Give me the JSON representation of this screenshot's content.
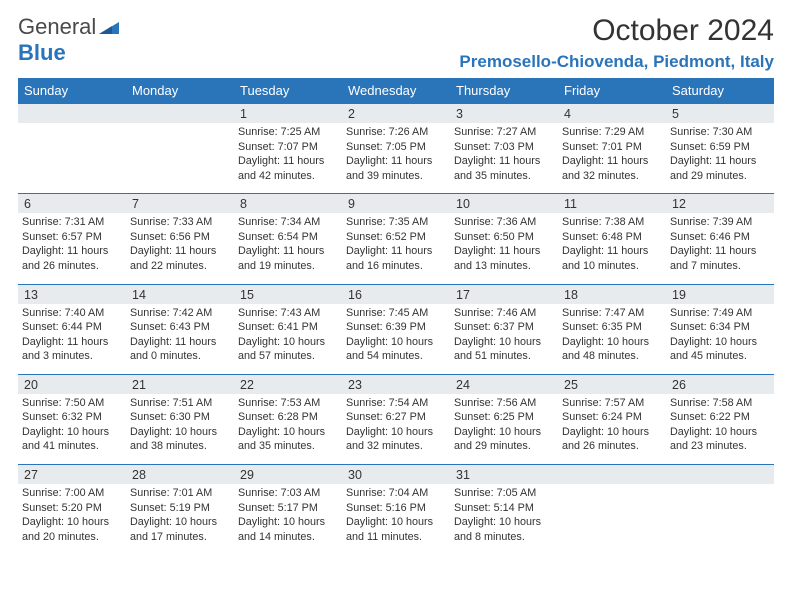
{
  "logo": {
    "text1": "General",
    "text2": "Blue",
    "color1": "#4a4a4a",
    "color2": "#2a74ba"
  },
  "title": "October 2024",
  "location": "Premosello-Chiovenda, Piedmont, Italy",
  "colors": {
    "header_bg": "#2a74ba",
    "header_fg": "#ffffff",
    "daynum_bg": "#e8ebed",
    "border": "#2a74ba",
    "text": "#333333",
    "background": "#ffffff"
  },
  "fonts": {
    "title_size": 30,
    "location_size": 17,
    "dow_size": 13,
    "daynum_size": 12.5,
    "cell_size": 10.8
  },
  "dow": [
    "Sunday",
    "Monday",
    "Tuesday",
    "Wednesday",
    "Thursday",
    "Friday",
    "Saturday"
  ],
  "weeks": [
    {
      "nums": [
        "",
        "",
        "1",
        "2",
        "3",
        "4",
        "5"
      ],
      "cells": [
        null,
        null,
        {
          "sunrise": "Sunrise: 7:25 AM",
          "sunset": "Sunset: 7:07 PM",
          "day1": "Daylight: 11 hours",
          "day2": "and 42 minutes."
        },
        {
          "sunrise": "Sunrise: 7:26 AM",
          "sunset": "Sunset: 7:05 PM",
          "day1": "Daylight: 11 hours",
          "day2": "and 39 minutes."
        },
        {
          "sunrise": "Sunrise: 7:27 AM",
          "sunset": "Sunset: 7:03 PM",
          "day1": "Daylight: 11 hours",
          "day2": "and 35 minutes."
        },
        {
          "sunrise": "Sunrise: 7:29 AM",
          "sunset": "Sunset: 7:01 PM",
          "day1": "Daylight: 11 hours",
          "day2": "and 32 minutes."
        },
        {
          "sunrise": "Sunrise: 7:30 AM",
          "sunset": "Sunset: 6:59 PM",
          "day1": "Daylight: 11 hours",
          "day2": "and 29 minutes."
        }
      ]
    },
    {
      "nums": [
        "6",
        "7",
        "8",
        "9",
        "10",
        "11",
        "12"
      ],
      "cells": [
        {
          "sunrise": "Sunrise: 7:31 AM",
          "sunset": "Sunset: 6:57 PM",
          "day1": "Daylight: 11 hours",
          "day2": "and 26 minutes."
        },
        {
          "sunrise": "Sunrise: 7:33 AM",
          "sunset": "Sunset: 6:56 PM",
          "day1": "Daylight: 11 hours",
          "day2": "and 22 minutes."
        },
        {
          "sunrise": "Sunrise: 7:34 AM",
          "sunset": "Sunset: 6:54 PM",
          "day1": "Daylight: 11 hours",
          "day2": "and 19 minutes."
        },
        {
          "sunrise": "Sunrise: 7:35 AM",
          "sunset": "Sunset: 6:52 PM",
          "day1": "Daylight: 11 hours",
          "day2": "and 16 minutes."
        },
        {
          "sunrise": "Sunrise: 7:36 AM",
          "sunset": "Sunset: 6:50 PM",
          "day1": "Daylight: 11 hours",
          "day2": "and 13 minutes."
        },
        {
          "sunrise": "Sunrise: 7:38 AM",
          "sunset": "Sunset: 6:48 PM",
          "day1": "Daylight: 11 hours",
          "day2": "and 10 minutes."
        },
        {
          "sunrise": "Sunrise: 7:39 AM",
          "sunset": "Sunset: 6:46 PM",
          "day1": "Daylight: 11 hours",
          "day2": "and 7 minutes."
        }
      ]
    },
    {
      "nums": [
        "13",
        "14",
        "15",
        "16",
        "17",
        "18",
        "19"
      ],
      "cells": [
        {
          "sunrise": "Sunrise: 7:40 AM",
          "sunset": "Sunset: 6:44 PM",
          "day1": "Daylight: 11 hours",
          "day2": "and 3 minutes."
        },
        {
          "sunrise": "Sunrise: 7:42 AM",
          "sunset": "Sunset: 6:43 PM",
          "day1": "Daylight: 11 hours",
          "day2": "and 0 minutes."
        },
        {
          "sunrise": "Sunrise: 7:43 AM",
          "sunset": "Sunset: 6:41 PM",
          "day1": "Daylight: 10 hours",
          "day2": "and 57 minutes."
        },
        {
          "sunrise": "Sunrise: 7:45 AM",
          "sunset": "Sunset: 6:39 PM",
          "day1": "Daylight: 10 hours",
          "day2": "and 54 minutes."
        },
        {
          "sunrise": "Sunrise: 7:46 AM",
          "sunset": "Sunset: 6:37 PM",
          "day1": "Daylight: 10 hours",
          "day2": "and 51 minutes."
        },
        {
          "sunrise": "Sunrise: 7:47 AM",
          "sunset": "Sunset: 6:35 PM",
          "day1": "Daylight: 10 hours",
          "day2": "and 48 minutes."
        },
        {
          "sunrise": "Sunrise: 7:49 AM",
          "sunset": "Sunset: 6:34 PM",
          "day1": "Daylight: 10 hours",
          "day2": "and 45 minutes."
        }
      ]
    },
    {
      "nums": [
        "20",
        "21",
        "22",
        "23",
        "24",
        "25",
        "26"
      ],
      "cells": [
        {
          "sunrise": "Sunrise: 7:50 AM",
          "sunset": "Sunset: 6:32 PM",
          "day1": "Daylight: 10 hours",
          "day2": "and 41 minutes."
        },
        {
          "sunrise": "Sunrise: 7:51 AM",
          "sunset": "Sunset: 6:30 PM",
          "day1": "Daylight: 10 hours",
          "day2": "and 38 minutes."
        },
        {
          "sunrise": "Sunrise: 7:53 AM",
          "sunset": "Sunset: 6:28 PM",
          "day1": "Daylight: 10 hours",
          "day2": "and 35 minutes."
        },
        {
          "sunrise": "Sunrise: 7:54 AM",
          "sunset": "Sunset: 6:27 PM",
          "day1": "Daylight: 10 hours",
          "day2": "and 32 minutes."
        },
        {
          "sunrise": "Sunrise: 7:56 AM",
          "sunset": "Sunset: 6:25 PM",
          "day1": "Daylight: 10 hours",
          "day2": "and 29 minutes."
        },
        {
          "sunrise": "Sunrise: 7:57 AM",
          "sunset": "Sunset: 6:24 PM",
          "day1": "Daylight: 10 hours",
          "day2": "and 26 minutes."
        },
        {
          "sunrise": "Sunrise: 7:58 AM",
          "sunset": "Sunset: 6:22 PM",
          "day1": "Daylight: 10 hours",
          "day2": "and 23 minutes."
        }
      ]
    },
    {
      "nums": [
        "27",
        "28",
        "29",
        "30",
        "31",
        "",
        ""
      ],
      "cells": [
        {
          "sunrise": "Sunrise: 7:00 AM",
          "sunset": "Sunset: 5:20 PM",
          "day1": "Daylight: 10 hours",
          "day2": "and 20 minutes."
        },
        {
          "sunrise": "Sunrise: 7:01 AM",
          "sunset": "Sunset: 5:19 PM",
          "day1": "Daylight: 10 hours",
          "day2": "and 17 minutes."
        },
        {
          "sunrise": "Sunrise: 7:03 AM",
          "sunset": "Sunset: 5:17 PM",
          "day1": "Daylight: 10 hours",
          "day2": "and 14 minutes."
        },
        {
          "sunrise": "Sunrise: 7:04 AM",
          "sunset": "Sunset: 5:16 PM",
          "day1": "Daylight: 10 hours",
          "day2": "and 11 minutes."
        },
        {
          "sunrise": "Sunrise: 7:05 AM",
          "sunset": "Sunset: 5:14 PM",
          "day1": "Daylight: 10 hours",
          "day2": "and 8 minutes."
        },
        null,
        null
      ]
    }
  ]
}
